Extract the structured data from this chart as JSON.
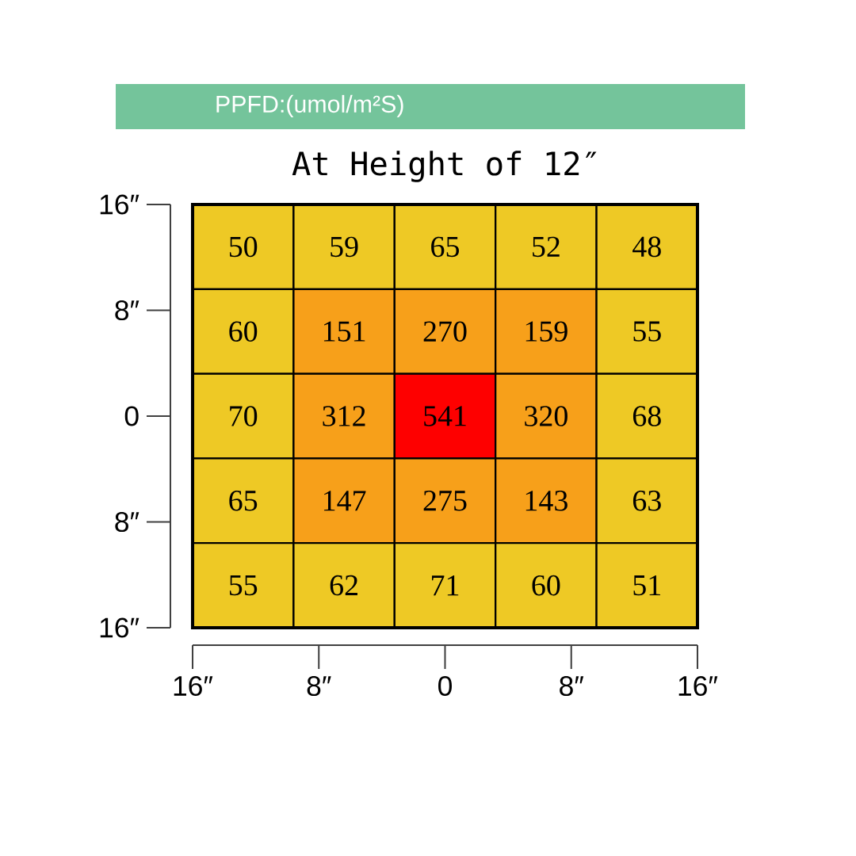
{
  "chart_data": {
    "type": "heatmap",
    "title": "PPFD:(umol/m²S)",
    "subtitle": "At Height of 12″",
    "cells": [
      [
        50,
        59,
        65,
        52,
        48
      ],
      [
        60,
        151,
        270,
        159,
        55
      ],
      [
        70,
        312,
        541,
        320,
        68
      ],
      [
        65,
        147,
        275,
        143,
        63
      ],
      [
        55,
        62,
        71,
        60,
        51
      ]
    ],
    "colors": [
      [
        "#eec925",
        "#eec925",
        "#eec925",
        "#eec925",
        "#eec925"
      ],
      [
        "#eec925",
        "#f7a01a",
        "#f7a01a",
        "#f7a01a",
        "#eec925"
      ],
      [
        "#eec925",
        "#f7a01a",
        "#fe0000",
        "#f7a01a",
        "#eec925"
      ],
      [
        "#eec925",
        "#f7a01a",
        "#f7a01a",
        "#f7a01a",
        "#eec925"
      ],
      [
        "#eec925",
        "#eec925",
        "#eec925",
        "#eec925",
        "#eec925"
      ]
    ],
    "data_labels": true,
    "xlim": [
      -16,
      16
    ],
    "ylim": [
      -16,
      16
    ],
    "xticks": [
      {
        "value": -16,
        "label": "16″"
      },
      {
        "value": -8,
        "label": "8″"
      },
      {
        "value": 0,
        "label": "0"
      },
      {
        "value": 8,
        "label": "8″"
      },
      {
        "value": 16,
        "label": "16″"
      }
    ],
    "yticks": [
      {
        "value": -16,
        "label": "16″"
      },
      {
        "value": -8,
        "label": "8″"
      },
      {
        "value": 0,
        "label": "0"
      },
      {
        "value": 8,
        "label": "8″"
      },
      {
        "value": 16,
        "label": "16″"
      }
    ]
  }
}
